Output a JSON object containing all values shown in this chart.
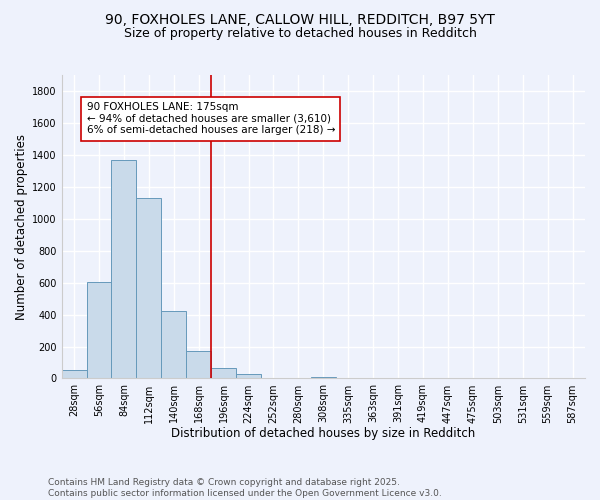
{
  "title_line1": "90, FOXHOLES LANE, CALLOW HILL, REDDITCH, B97 5YT",
  "title_line2": "Size of property relative to detached houses in Redditch",
  "xlabel": "Distribution of detached houses by size in Redditch",
  "ylabel": "Number of detached properties",
  "categories": [
    "28sqm",
    "56sqm",
    "84sqm",
    "112sqm",
    "140sqm",
    "168sqm",
    "196sqm",
    "224sqm",
    "252sqm",
    "280sqm",
    "308sqm",
    "335sqm",
    "363sqm",
    "391sqm",
    "419sqm",
    "447sqm",
    "475sqm",
    "503sqm",
    "531sqm",
    "559sqm",
    "587sqm"
  ],
  "values": [
    55,
    605,
    1365,
    1130,
    425,
    175,
    65,
    30,
    5,
    0,
    10,
    0,
    0,
    0,
    0,
    0,
    0,
    0,
    0,
    0,
    0
  ],
  "bar_color": "#c9daea",
  "bar_edge_color": "#6699bb",
  "property_line_color": "#cc0000",
  "annotation_text": "90 FOXHOLES LANE: 175sqm\n← 94% of detached houses are smaller (3,610)\n6% of semi-detached houses are larger (218) →",
  "annotation_box_color": "white",
  "annotation_box_edge_color": "#cc0000",
  "ylim": [
    0,
    1900
  ],
  "yticks": [
    0,
    200,
    400,
    600,
    800,
    1000,
    1200,
    1400,
    1600,
    1800
  ],
  "footer_text": "Contains HM Land Registry data © Crown copyright and database right 2025.\nContains public sector information licensed under the Open Government Licence v3.0.",
  "background_color": "#eef2fc",
  "grid_color": "white",
  "title_fontsize": 10,
  "subtitle_fontsize": 9,
  "axis_label_fontsize": 8.5,
  "tick_fontsize": 7,
  "annotation_fontsize": 7.5,
  "footer_fontsize": 6.5
}
